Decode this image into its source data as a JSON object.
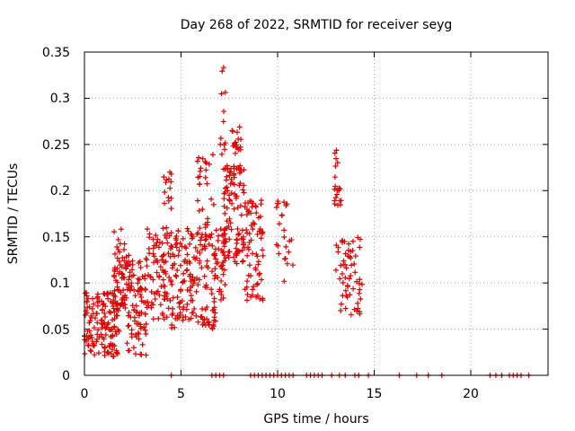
{
  "chart_data": {
    "type": "scatter",
    "title": "Day 268 of 2022, SRMTID for receiver seyg",
    "xlabel": "GPS time / hours",
    "ylabel": "SRMTID / TECUs",
    "xlim": [
      0,
      24
    ],
    "ylim": [
      0,
      0.35
    ],
    "xticks": [
      "0",
      "5",
      "10",
      "15",
      "20"
    ],
    "yticks": [
      "0",
      "0.05",
      "0.1",
      "0.15",
      "0.2",
      "0.25",
      "0.3",
      "0.35"
    ],
    "grid": true,
    "marker": "+",
    "color": "#e00000",
    "clusters": [
      {
        "x": [
          0.0,
          1.8
        ],
        "y": [
          0.02,
          0.09
        ],
        "n": 140
      },
      {
        "x": [
          1.5,
          2.2
        ],
        "y": [
          0.07,
          0.16
        ],
        "n": 60
      },
      {
        "x": [
          2.2,
          3.2
        ],
        "y": [
          0.02,
          0.13
        ],
        "n": 90
      },
      {
        "x": [
          3.2,
          4.5
        ],
        "y": [
          0.06,
          0.16
        ],
        "n": 90
      },
      {
        "x": [
          4.1,
          4.5
        ],
        "y": [
          0.18,
          0.22
        ],
        "n": 14
      },
      {
        "x": [
          4.5,
          6.8
        ],
        "y": [
          0.05,
          0.16
        ],
        "n": 160
      },
      {
        "x": [
          5.8,
          6.8
        ],
        "y": [
          0.12,
          0.24
        ],
        "n": 40
      },
      {
        "x": [
          6.8,
          7.3
        ],
        "y": [
          0.08,
          0.17
        ],
        "n": 30
      },
      {
        "x": [
          7.0,
          7.3
        ],
        "y": [
          0.23,
          0.35
        ],
        "n": 12
      },
      {
        "x": [
          7.2,
          8.3
        ],
        "y": [
          0.12,
          0.23
        ],
        "n": 110
      },
      {
        "x": [
          7.6,
          8.1
        ],
        "y": [
          0.24,
          0.27
        ],
        "n": 18
      },
      {
        "x": [
          8.3,
          9.3
        ],
        "y": [
          0.08,
          0.19
        ],
        "n": 70
      },
      {
        "x": [
          9.9,
          10.8
        ],
        "y": [
          0.1,
          0.19
        ],
        "n": 24
      },
      {
        "x": [
          12.9,
          13.3
        ],
        "y": [
          0.18,
          0.245
        ],
        "n": 20
      },
      {
        "x": [
          13.0,
          14.4
        ],
        "y": [
          0.065,
          0.15
        ],
        "n": 60
      }
    ],
    "zero_points_x": [
      4.5,
      6.6,
      6.8,
      7.0,
      7.2,
      8.6,
      8.8,
      9.0,
      9.2,
      9.4,
      9.6,
      9.8,
      10.0,
      10.2,
      10.4,
      10.6,
      10.8,
      11.5,
      11.7,
      11.9,
      12.1,
      12.3,
      12.8,
      13.2,
      13.5,
      14.0,
      14.2,
      14.7,
      16.3,
      17.2,
      17.8,
      18.5,
      21.0,
      21.3,
      21.6,
      22.0,
      22.2,
      22.4,
      22.6,
      23.0
    ]
  }
}
